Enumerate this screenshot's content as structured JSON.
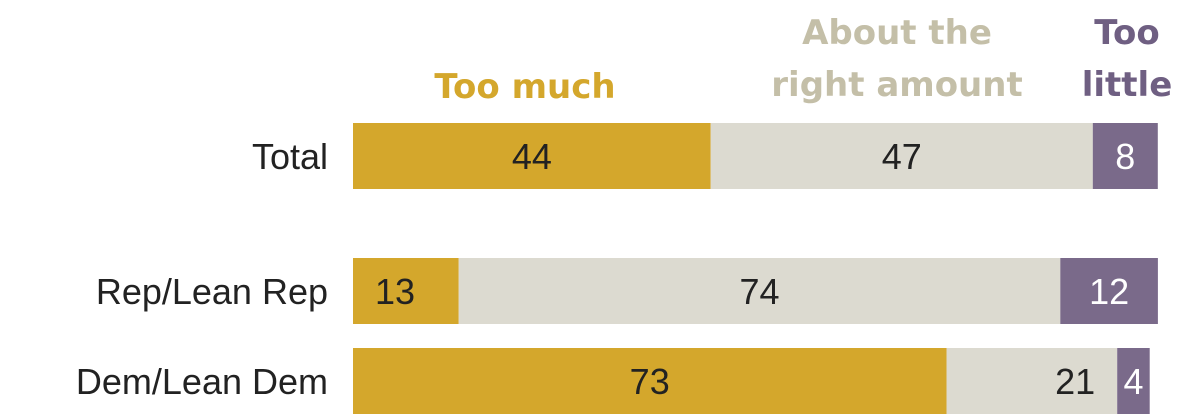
{
  "chart_data": {
    "type": "bar",
    "orientation": "horizontal",
    "stacked": true,
    "categories": [
      "Total",
      "Rep/Lean Rep",
      "Dem/Lean Dem"
    ],
    "series": [
      {
        "name": "Too much",
        "legend_lines": [
          "Too much"
        ],
        "color": "#d4a72c",
        "label_color": "#222222",
        "values": [
          44,
          13,
          73
        ]
      },
      {
        "name": "About the right amount",
        "legend_lines": [
          "About the",
          "right amount"
        ],
        "color": "#dcdad0",
        "label_color": "#222222",
        "values": [
          47,
          74,
          21
        ]
      },
      {
        "name": "Too little",
        "legend_lines": [
          "Too",
          "little"
        ],
        "color": "#7a6a8a",
        "label_color": "#ffffff",
        "values": [
          8,
          12,
          4
        ]
      }
    ],
    "legend_text_colors": [
      "#d4a72c",
      "#c4bfa8",
      "#6f5f82"
    ],
    "legend_placement": "top",
    "grid": false
  }
}
